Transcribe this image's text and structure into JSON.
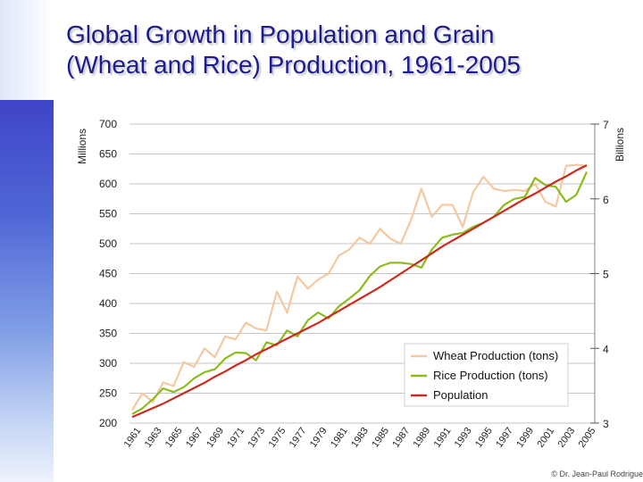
{
  "title_lines": [
    "Global Growth in Population and Grain",
    "(Wheat and Rice) Production, 1961-2005"
  ],
  "credit": "© Dr. Jean-Paul Rodrigue",
  "colors": {
    "title": "#1c1c8c",
    "wheat": "#f2c9a0",
    "rice": "#8dbb1c",
    "population": "#cc2a1e",
    "grid": "#c6c6c6"
  },
  "chart_data": {
    "type": "line",
    "title": "",
    "ylabel": "Millions",
    "ylabel_right": "Billions",
    "ylim": [
      200,
      700
    ],
    "ylim_right": [
      3,
      7
    ],
    "yticks": [
      200,
      250,
      300,
      350,
      400,
      450,
      500,
      550,
      600,
      650,
      700
    ],
    "yticks_right": [
      3,
      4,
      5,
      6,
      7
    ],
    "grid": true,
    "legend": "bottom-right",
    "x": [
      1961,
      1962,
      1963,
      1964,
      1965,
      1966,
      1967,
      1968,
      1969,
      1970,
      1971,
      1972,
      1973,
      1974,
      1975,
      1976,
      1977,
      1978,
      1979,
      1980,
      1981,
      1982,
      1983,
      1984,
      1985,
      1986,
      1987,
      1988,
      1989,
      1990,
      1991,
      1992,
      1993,
      1994,
      1995,
      1996,
      1997,
      1998,
      1999,
      2000,
      2001,
      2002,
      2003,
      2004,
      2005
    ],
    "xtick_labels": [
      "1961",
      "1963",
      "1965",
      "1967",
      "1969",
      "1971",
      "1973",
      "1975",
      "1977",
      "1979",
      "1981",
      "1983",
      "1985",
      "1987",
      "1989",
      "1991",
      "1993",
      "1995",
      "1997",
      "1999",
      "2001",
      "2003",
      "2005"
    ],
    "series": [
      {
        "name": "Wheat Production (tons)",
        "axis": "left",
        "color": "#f2c9a0",
        "values": [
          222,
          250,
          235,
          268,
          262,
          302,
          294,
          325,
          310,
          345,
          340,
          368,
          358,
          355,
          420,
          385,
          445,
          425,
          440,
          450,
          480,
          490,
          510,
          500,
          525,
          508,
          500,
          540,
          592,
          545,
          565,
          565,
          528,
          586,
          612,
          592,
          588,
          590,
          588,
          600,
          570,
          562,
          630,
          632,
          630
        ]
      },
      {
        "name": "Rice Production (tons)",
        "axis": "left",
        "color": "#8dbb1c",
        "values": [
          215,
          225,
          240,
          258,
          252,
          260,
          275,
          285,
          290,
          308,
          318,
          317,
          305,
          335,
          330,
          355,
          345,
          372,
          385,
          375,
          395,
          408,
          422,
          446,
          462,
          468,
          468,
          466,
          460,
          490,
          510,
          515,
          518,
          528,
          535,
          545,
          565,
          575,
          578,
          610,
          598,
          595,
          570,
          582,
          620
        ]
      },
      {
        "name": "Population",
        "axis": "right",
        "color": "#cc2a1e",
        "values": [
          3.08,
          3.14,
          3.2,
          3.26,
          3.33,
          3.4,
          3.47,
          3.54,
          3.62,
          3.69,
          3.77,
          3.84,
          3.92,
          3.99,
          4.06,
          4.13,
          4.2,
          4.27,
          4.34,
          4.42,
          4.5,
          4.58,
          4.66,
          4.74,
          4.82,
          4.91,
          5.0,
          5.09,
          5.18,
          5.27,
          5.36,
          5.44,
          5.52,
          5.6,
          5.68,
          5.76,
          5.84,
          5.92,
          6.0,
          6.07,
          6.15,
          6.23,
          6.3,
          6.38,
          6.45
        ]
      }
    ]
  }
}
